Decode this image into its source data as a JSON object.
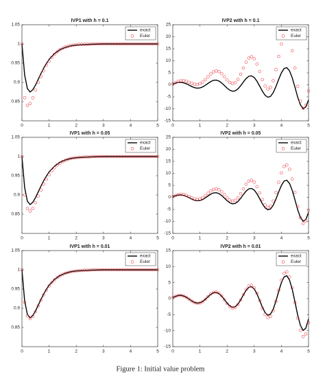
{
  "caption": "Figure 1: Initial value problem",
  "chart_data": [
    {
      "type": "line",
      "title": "IVP1 with h = 0.1",
      "xlim": [
        0,
        5
      ],
      "xticks": [
        0,
        1,
        2,
        3,
        4,
        5
      ],
      "ylim": [
        0.8,
        1.05
      ],
      "yticks": [
        0.85,
        0.9,
        0.95,
        1,
        1.05
      ],
      "legend": "northeast",
      "x": [
        0,
        0.1,
        0.2,
        0.3,
        0.4,
        0.5,
        0.6,
        0.7,
        0.8,
        0.9,
        1,
        1.1,
        1.2,
        1.3,
        1.4,
        1.5,
        1.6,
        1.7,
        1.8,
        1.9,
        2,
        2.1,
        2.2,
        2.3,
        2.4,
        2.5,
        2.6,
        2.7,
        2.8,
        2.9,
        3,
        3.1,
        3.2,
        3.3,
        3.4,
        3.5,
        3.6,
        3.7,
        3.8,
        3.9,
        4,
        4.1,
        4.2,
        4.3,
        4.4,
        4.5,
        4.6,
        4.7,
        4.8,
        4.9,
        5
      ],
      "series": [
        {
          "name": "exact",
          "color": "#000000",
          "mode": "line",
          "x": [
            0,
            0.1,
            0.2,
            0.3,
            0.4,
            0.5,
            0.6,
            0.7,
            0.8,
            0.9,
            1,
            1.2,
            1.4,
            1.6,
            1.8,
            2,
            2.5,
            3,
            3.5,
            4,
            4.5,
            5
          ],
          "values": [
            1,
            0.919,
            0.884,
            0.875,
            0.881,
            0.893,
            0.908,
            0.923,
            0.937,
            0.949,
            0.96,
            0.975,
            0.985,
            0.991,
            0.995,
            0.997,
            0.999,
            1,
            1,
            1,
            1,
            1
          ]
        },
        {
          "name": "Euler",
          "color": "#e8212a",
          "mode": "markers",
          "values": [
            1,
            0.86,
            0.84,
            0.845,
            0.86,
            0.88,
            0.9,
            0.915,
            0.93,
            0.945,
            0.955,
            0.965,
            0.973,
            0.98,
            0.985,
            0.989,
            0.992,
            0.994,
            0.996,
            0.997,
            0.998,
            0.999,
            0.999,
            0.999,
            0.999,
            0.999,
            1,
            1,
            1,
            1,
            1,
            1,
            1,
            1,
            1,
            1,
            1,
            1,
            1,
            1,
            1,
            1,
            1,
            1,
            1,
            1,
            1,
            1,
            1,
            1,
            1
          ]
        }
      ]
    },
    {
      "type": "line",
      "title": "IVP2 with h = 0.1",
      "xlim": [
        0,
        5
      ],
      "xticks": [
        0,
        1,
        2,
        3,
        4,
        5
      ],
      "ylim": [
        -15,
        25
      ],
      "yticks": [
        -15,
        -10,
        -5,
        0,
        5,
        10,
        15,
        20,
        25
      ],
      "legend": "northeast",
      "x": [
        0,
        0.1,
        0.2,
        0.3,
        0.4,
        0.5,
        0.6,
        0.7,
        0.8,
        0.9,
        1,
        1.1,
        1.2,
        1.3,
        1.4,
        1.5,
        1.6,
        1.7,
        1.8,
        1.9,
        2,
        2.1,
        2.2,
        2.3,
        2.4,
        2.5,
        2.6,
        2.7,
        2.8,
        2.9,
        3,
        3.1,
        3.2,
        3.3,
        3.4,
        3.5,
        3.6,
        3.7,
        3.8,
        3.9,
        4,
        4.1,
        4.2,
        4.3,
        4.4,
        4.5,
        4.6,
        4.7,
        4.8,
        4.9,
        5
      ],
      "series": [
        {
          "name": "exact",
          "color": "#000000",
          "mode": "line",
          "values": [
            0.32,
            0.71,
            0.97,
            1.02,
            0.82,
            0.41,
            -0.15,
            -0.73,
            -1.19,
            -1.41,
            -1.31,
            -0.89,
            -0.2,
            0.61,
            1.36,
            1.85,
            1.94,
            1.57,
            0.78,
            -0.28,
            -1.4,
            -2.27,
            -2.7,
            -2.52,
            -1.71,
            -0.38,
            1.17,
            2.6,
            3.54,
            3.73,
            3.02,
            1.5,
            -0.54,
            -2.68,
            -4.36,
            -5.18,
            -4.82,
            -3.27,
            -0.72,
            2.25,
            4.98,
            6.79,
            7.14,
            5.78,
            2.88,
            -1.03,
            -5.13,
            -8.34,
            -9.92,
            -9.23,
            -6.27
          ]
        },
        {
          "name": "Euler",
          "color": "#e8212a",
          "mode": "markers",
          "values": [
            0.32,
            0.92,
            1.41,
            1.68,
            1.69,
            1.45,
            1.03,
            0.57,
            0.22,
            0.14,
            0.43,
            1.11,
            2.15,
            3.37,
            4.54,
            5.41,
            5.76,
            5.5,
            4.66,
            3.41,
            2.04,
            0.98,
            0.51,
            0.92,
            2.27,
            4.43,
            6.98,
            9.4,
            11.12,
            11.69,
            10.83,
            8.63,
            5.51,
            2.15,
            -0.52,
            -1.81,
            -1.09,
            1.71,
            6.33,
            11.81,
            16.96,
            20.56,
            21.54,
            19.35,
            14.21,
            7.04,
            -0.65,
            -6.78,
            -9.84,
            -8.48,
            -2.54
          ]
        }
      ]
    },
    {
      "type": "line",
      "title": "IVP1 with h = 0.05",
      "xlim": [
        0,
        5
      ],
      "xticks": [
        0,
        1,
        2,
        3,
        4,
        5
      ],
      "ylim": [
        0.8,
        1.05
      ],
      "yticks": [
        0.85,
        0.9,
        0.95,
        1,
        1.05
      ],
      "legend": "northeast",
      "x": [
        0,
        0.1,
        0.2,
        0.3,
        0.4,
        0.5,
        0.6,
        0.7,
        0.8,
        0.9,
        1,
        1.1,
        1.2,
        1.3,
        1.4,
        1.5,
        1.6,
        1.7,
        1.8,
        1.9,
        2,
        2.1,
        2.2,
        2.3,
        2.4,
        2.5,
        2.6,
        2.7,
        2.8,
        2.9,
        3,
        3.1,
        3.2,
        3.3,
        3.4,
        3.5,
        3.6,
        3.7,
        3.8,
        3.9,
        4,
        4.1,
        4.2,
        4.3,
        4.4,
        4.5,
        4.6,
        4.7,
        4.8,
        4.9,
        5
      ],
      "series": [
        {
          "name": "exact",
          "color": "#000000",
          "mode": "line",
          "x": [
            0,
            0.1,
            0.2,
            0.3,
            0.4,
            0.5,
            0.6,
            0.7,
            0.8,
            0.9,
            1,
            1.2,
            1.4,
            1.6,
            1.8,
            2,
            2.5,
            3,
            3.5,
            4,
            4.5,
            5
          ],
          "values": [
            1,
            0.919,
            0.884,
            0.875,
            0.881,
            0.893,
            0.908,
            0.923,
            0.937,
            0.949,
            0.96,
            0.975,
            0.985,
            0.991,
            0.995,
            0.997,
            0.999,
            1,
            1,
            1,
            1,
            1
          ]
        },
        {
          "name": "Euler",
          "color": "#e8212a",
          "mode": "markers",
          "values": [
            1,
            0.9,
            0.865,
            0.858,
            0.865,
            0.88,
            0.897,
            0.913,
            0.928,
            0.941,
            0.953,
            0.963,
            0.971,
            0.978,
            0.983,
            0.987,
            0.99,
            0.993,
            0.995,
            0.996,
            0.997,
            0.998,
            0.998,
            0.999,
            0.999,
            0.999,
            1,
            1,
            1,
            1,
            1,
            1,
            1,
            1,
            1,
            1,
            1,
            1,
            1,
            1,
            1,
            1,
            1,
            1,
            1,
            1,
            1,
            1,
            1,
            1,
            1
          ]
        }
      ]
    },
    {
      "type": "line",
      "title": "IVP2 with h = 0.05",
      "xlim": [
        0,
        5
      ],
      "xticks": [
        0,
        1,
        2,
        3,
        4,
        5
      ],
      "ylim": [
        -15,
        25
      ],
      "yticks": [
        -15,
        -10,
        -5,
        0,
        5,
        10,
        15,
        20,
        25
      ],
      "legend": "northeast",
      "x": [
        0,
        0.1,
        0.2,
        0.3,
        0.4,
        0.5,
        0.6,
        0.7,
        0.8,
        0.9,
        1,
        1.1,
        1.2,
        1.3,
        1.4,
        1.5,
        1.6,
        1.7,
        1.8,
        1.9,
        2,
        2.1,
        2.2,
        2.3,
        2.4,
        2.5,
        2.6,
        2.7,
        2.8,
        2.9,
        3,
        3.1,
        3.2,
        3.3,
        3.4,
        3.5,
        3.6,
        3.7,
        3.8,
        3.9,
        4,
        4.1,
        4.2,
        4.3,
        4.4,
        4.5,
        4.6,
        4.7,
        4.8,
        4.9,
        5
      ],
      "series": [
        {
          "name": "exact",
          "color": "#000000",
          "mode": "line",
          "values": [
            0.32,
            0.71,
            0.97,
            1.02,
            0.82,
            0.41,
            -0.15,
            -0.73,
            -1.19,
            -1.41,
            -1.31,
            -0.89,
            -0.2,
            0.61,
            1.36,
            1.85,
            1.94,
            1.57,
            0.78,
            -0.28,
            -1.4,
            -2.27,
            -2.7,
            -2.52,
            -1.71,
            -0.38,
            1.17,
            2.6,
            3.54,
            3.73,
            3.02,
            1.5,
            -0.54,
            -2.68,
            -4.36,
            -5.18,
            -4.82,
            -3.27,
            -0.72,
            2.25,
            4.98,
            6.79,
            7.14,
            5.78,
            2.88,
            -1.03,
            -5.13,
            -8.34,
            -9.92,
            -9.23,
            -6.27
          ]
        },
        {
          "name": "Euler",
          "color": "#e8212a",
          "mode": "markers",
          "values": [
            0.32,
            0.8,
            1.15,
            1.29,
            1.17,
            0.83,
            0.32,
            -0.22,
            -0.65,
            -0.82,
            -0.64,
            -0.11,
            0.74,
            1.73,
            2.67,
            3.33,
            3.53,
            3.2,
            2.36,
            1.19,
            -0.08,
            -1.07,
            -1.53,
            -1.26,
            -0.2,
            1.53,
            3.55,
            5.46,
            6.77,
            7.13,
            6.33,
            4.45,
            1.85,
            -0.92,
            -3.12,
            -4.19,
            -3.68,
            -1.52,
            2.05,
            6.25,
            10.17,
            12.85,
            13.5,
            11.71,
            7.67,
            2.11,
            -3.81,
            -8.5,
            -10.84,
            -9.83,
            -5.41
          ]
        }
      ]
    },
    {
      "type": "line",
      "title": "IVP1 with h = 0.01",
      "xlim": [
        0,
        5
      ],
      "xticks": [
        0,
        1,
        2,
        3,
        4,
        5
      ],
      "ylim": [
        0.8,
        1.05
      ],
      "yticks": [
        0.85,
        0.9,
        0.95,
        1,
        1.05
      ],
      "legend": "northeast",
      "x": [
        0,
        0.1,
        0.2,
        0.3,
        0.4,
        0.5,
        0.6,
        0.7,
        0.8,
        0.9,
        1,
        1.1,
        1.2,
        1.3,
        1.4,
        1.5,
        1.6,
        1.7,
        1.8,
        1.9,
        2,
        2.1,
        2.2,
        2.3,
        2.4,
        2.5,
        2.6,
        2.7,
        2.8,
        2.9,
        3,
        3.1,
        3.2,
        3.3,
        3.4,
        3.5,
        3.6,
        3.7,
        3.8,
        3.9,
        4,
        4.1,
        4.2,
        4.3,
        4.4,
        4.5,
        4.6,
        4.7,
        4.8,
        4.9,
        5
      ],
      "series": [
        {
          "name": "exact",
          "color": "#000000",
          "mode": "line",
          "x": [
            0,
            0.1,
            0.2,
            0.3,
            0.4,
            0.5,
            0.6,
            0.7,
            0.8,
            0.9,
            1,
            1.2,
            1.4,
            1.6,
            1.8,
            2,
            2.5,
            3,
            3.5,
            4,
            4.5,
            5
          ],
          "values": [
            1,
            0.919,
            0.884,
            0.875,
            0.881,
            0.893,
            0.908,
            0.923,
            0.937,
            0.949,
            0.96,
            0.975,
            0.985,
            0.991,
            0.995,
            0.997,
            0.999,
            1,
            1,
            1,
            1,
            1
          ]
        },
        {
          "name": "Euler",
          "color": "#e8212a",
          "mode": "markers",
          "values": [
            1,
            0.915,
            0.88,
            0.873,
            0.879,
            0.891,
            0.906,
            0.921,
            0.935,
            0.947,
            0.958,
            0.967,
            0.974,
            0.98,
            0.984,
            0.988,
            0.991,
            0.993,
            0.995,
            0.996,
            0.997,
            0.998,
            0.998,
            0.999,
            0.999,
            0.999,
            1,
            1,
            1,
            1,
            1,
            1,
            1,
            1,
            1,
            1,
            1,
            1,
            1,
            1,
            1,
            1,
            1,
            1,
            1,
            1,
            1,
            1,
            1,
            1,
            1
          ]
        }
      ]
    },
    {
      "type": "line",
      "title": "IVP2 with h = 0.01",
      "xlim": [
        0,
        5
      ],
      "xticks": [
        0,
        1,
        2,
        3,
        4,
        5
      ],
      "ylim": [
        -15,
        15
      ],
      "yticks": [
        -15,
        -10,
        -5,
        0,
        5,
        10,
        15
      ],
      "legend": "northeast",
      "x": [
        0,
        0.1,
        0.2,
        0.3,
        0.4,
        0.5,
        0.6,
        0.7,
        0.8,
        0.9,
        1,
        1.1,
        1.2,
        1.3,
        1.4,
        1.5,
        1.6,
        1.7,
        1.8,
        1.9,
        2,
        2.1,
        2.2,
        2.3,
        2.4,
        2.5,
        2.6,
        2.7,
        2.8,
        2.9,
        3,
        3.1,
        3.2,
        3.3,
        3.4,
        3.5,
        3.6,
        3.7,
        3.8,
        3.9,
        4,
        4.1,
        4.2,
        4.3,
        4.4,
        4.5,
        4.6,
        4.7,
        4.8,
        4.9,
        5
      ],
      "series": [
        {
          "name": "exact",
          "color": "#000000",
          "mode": "line",
          "values": [
            0.32,
            0.71,
            0.97,
            1.02,
            0.82,
            0.41,
            -0.15,
            -0.73,
            -1.19,
            -1.41,
            -1.31,
            -0.89,
            -0.2,
            0.61,
            1.36,
            1.85,
            1.94,
            1.57,
            0.78,
            -0.28,
            -1.4,
            -2.27,
            -2.7,
            -2.52,
            -1.71,
            -0.38,
            1.17,
            2.6,
            3.54,
            3.73,
            3.02,
            1.5,
            -0.54,
            -2.68,
            -4.36,
            -5.18,
            -4.82,
            -3.27,
            -0.72,
            2.25,
            4.98,
            6.79,
            7.14,
            5.78,
            2.88,
            -1.03,
            -5.13,
            -8.34,
            -9.92,
            -9.23,
            -6.27
          ]
        },
        {
          "name": "Euler",
          "color": "#e8212a",
          "mode": "markers",
          "values": [
            0.32,
            0.71,
            0.98,
            1.03,
            0.83,
            0.42,
            -0.15,
            -0.75,
            -1.23,
            -1.46,
            -1.36,
            -0.93,
            -0.21,
            0.64,
            1.44,
            1.96,
            2.06,
            1.68,
            0.84,
            -0.3,
            -1.51,
            -2.46,
            -2.94,
            -2.75,
            -1.87,
            -0.42,
            1.29,
            2.88,
            3.94,
            4.16,
            3.38,
            1.69,
            -0.61,
            -3.03,
            -4.95,
            -5.91,
            -5.51,
            -3.75,
            -0.83,
            2.6,
            5.78,
            7.9,
            8.34,
            6.77,
            3.39,
            -1.22,
            -6.07,
            -9.91,
            -11.82,
            -11.04,
            -7.52
          ]
        }
      ]
    }
  ]
}
